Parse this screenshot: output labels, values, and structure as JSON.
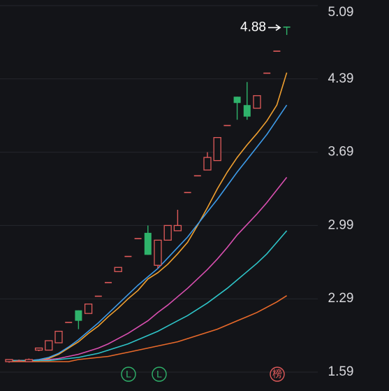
{
  "chart_data": {
    "type": "candlestick",
    "ylim": [
      1.59,
      5.09
    ],
    "yticks": [
      1.59,
      2.29,
      2.99,
      3.69,
      4.39,
      5.09
    ],
    "grid": true,
    "up_color": "#e05a5a",
    "down_color": "#2fb36b",
    "candles": [
      {
        "open": 1.69,
        "high": 1.71,
        "low": 1.68,
        "close": 1.71
      },
      {
        "open": 1.7,
        "high": 1.71,
        "low": 1.69,
        "close": 1.7
      },
      {
        "open": 1.69,
        "high": 1.72,
        "low": 1.69,
        "close": 1.71
      },
      {
        "open": 1.8,
        "high": 1.82,
        "low": 1.79,
        "close": 1.82
      },
      {
        "open": 1.8,
        "high": 1.89,
        "low": 1.8,
        "close": 1.89
      },
      {
        "open": 1.87,
        "high": 1.98,
        "low": 1.87,
        "close": 1.98
      },
      {
        "open": 2.07,
        "high": 2.07,
        "low": 2.07,
        "close": 2.07
      },
      {
        "open": 2.18,
        "high": 2.18,
        "low": 2.0,
        "close": 2.08
      },
      {
        "open": 2.15,
        "high": 2.24,
        "low": 2.15,
        "close": 2.24
      },
      {
        "open": 2.32,
        "high": 2.32,
        "low": 2.32,
        "close": 2.32
      },
      {
        "open": 2.45,
        "high": 2.45,
        "low": 2.45,
        "close": 2.45
      },
      {
        "open": 2.55,
        "high": 2.59,
        "low": 2.55,
        "close": 2.59
      },
      {
        "open": 2.7,
        "high": 2.7,
        "low": 2.7,
        "close": 2.7
      },
      {
        "open": 2.87,
        "high": 2.87,
        "low": 2.87,
        "close": 2.87
      },
      {
        "open": 2.92,
        "high": 2.99,
        "low": 2.71,
        "close": 2.71
      },
      {
        "open": 2.61,
        "high": 2.85,
        "low": 2.58,
        "close": 2.85
      },
      {
        "open": 2.85,
        "high": 2.99,
        "low": 2.85,
        "close": 2.99
      },
      {
        "open": 2.94,
        "high": 3.14,
        "low": 2.94,
        "close": 2.99
      },
      {
        "open": 3.31,
        "high": 3.31,
        "low": 3.31,
        "close": 3.31
      },
      {
        "open": 3.47,
        "high": 3.47,
        "low": 3.47,
        "close": 3.47
      },
      {
        "open": 3.52,
        "high": 3.69,
        "low": 3.52,
        "close": 3.64
      },
      {
        "open": 3.61,
        "high": 3.83,
        "low": 3.61,
        "close": 3.83
      },
      {
        "open": 3.95,
        "high": 3.95,
        "low": 3.95,
        "close": 3.95
      },
      {
        "open": 4.22,
        "high": 4.22,
        "low": 4.0,
        "close": 4.16
      },
      {
        "open": 4.14,
        "high": 4.36,
        "low": 4.0,
        "close": 4.03
      },
      {
        "open": 4.11,
        "high": 4.23,
        "low": 4.11,
        "close": 4.23
      },
      {
        "open": 4.45,
        "high": 4.45,
        "low": 4.45,
        "close": 4.45
      },
      {
        "open": 4.66,
        "high": 4.66,
        "low": 4.66,
        "close": 4.66
      },
      {
        "open": 4.89,
        "high": 4.89,
        "low": 4.81,
        "close": 4.88
      }
    ],
    "series": [
      {
        "color": "#f0a030",
        "values": [
          1.7,
          1.7,
          1.7,
          1.7,
          1.72,
          1.76,
          1.82,
          1.88,
          1.96,
          2.03,
          2.12,
          2.2,
          2.29,
          2.37,
          2.48,
          2.54,
          2.62,
          2.72,
          2.83,
          2.99,
          3.16,
          3.34,
          3.5,
          3.64,
          3.76,
          3.87,
          3.99,
          4.14,
          4.45
        ]
      },
      {
        "color": "#3d9be9",
        "values": [
          1.7,
          1.7,
          1.7,
          1.71,
          1.73,
          1.77,
          1.83,
          1.9,
          1.98,
          2.06,
          2.15,
          2.24,
          2.33,
          2.42,
          2.5,
          2.58,
          2.68,
          2.78,
          2.88,
          3.0,
          3.12,
          3.24,
          3.37,
          3.5,
          3.62,
          3.74,
          3.86,
          4.0,
          4.14
        ]
      },
      {
        "color": "#d94fb0",
        "values": [
          1.7,
          1.7,
          1.7,
          1.7,
          1.71,
          1.72,
          1.74,
          1.76,
          1.79,
          1.82,
          1.86,
          1.91,
          1.96,
          2.02,
          2.08,
          2.16,
          2.23,
          2.31,
          2.39,
          2.48,
          2.57,
          2.67,
          2.78,
          2.9,
          3.0,
          3.1,
          3.21,
          3.33,
          3.45
        ]
      },
      {
        "color": "#2ec4c8",
        "values": [
          1.7,
          1.7,
          1.7,
          1.7,
          1.7,
          1.71,
          1.72,
          1.73,
          1.75,
          1.77,
          1.8,
          1.83,
          1.86,
          1.9,
          1.94,
          1.98,
          2.03,
          2.08,
          2.13,
          2.19,
          2.25,
          2.32,
          2.39,
          2.47,
          2.55,
          2.63,
          2.72,
          2.83,
          2.94
        ]
      },
      {
        "color": "#e8692a",
        "values": [
          1.69,
          1.69,
          1.69,
          1.69,
          1.69,
          1.69,
          1.69,
          1.71,
          1.72,
          1.73,
          1.74,
          1.76,
          1.78,
          1.8,
          1.82,
          1.84,
          1.86,
          1.88,
          1.91,
          1.94,
          1.97,
          2.0,
          2.04,
          2.08,
          2.12,
          2.16,
          2.21,
          2.26,
          2.32
        ]
      }
    ],
    "annotation": 4.88,
    "markers": [
      {
        "label": "L",
        "color": "#2fb36b"
      },
      {
        "label": "L",
        "color": "#2fb36b"
      },
      {
        "label": "榜",
        "color": "#e05a5a"
      }
    ]
  }
}
